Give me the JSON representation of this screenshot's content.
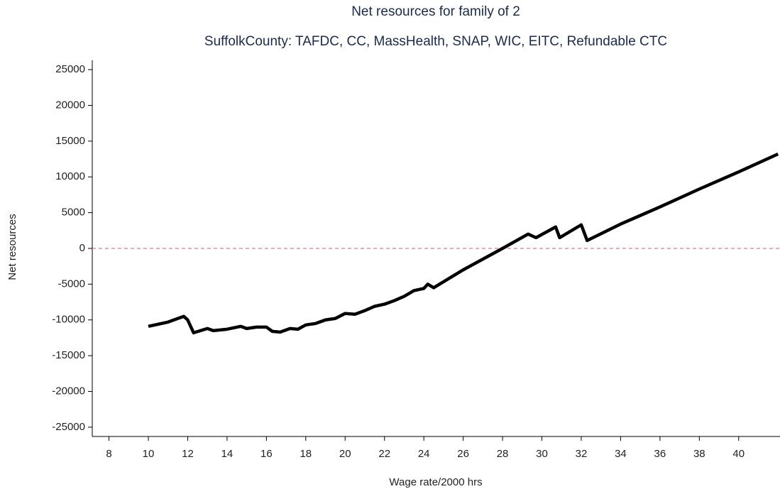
{
  "chart_data": {
    "type": "line",
    "title": "Net resources for family of 2",
    "subtitle": "SuffolkCounty: TAFDC, CC, MassHealth, SNAP, WIC, EITC, Refundable CTC",
    "x_label": "Wage rate/2000 hrs",
    "y_label": "Net resources",
    "x": [
      10,
      11,
      11.8,
      12,
      12.3,
      13,
      13.3,
      14,
      14.7,
      15,
      15.5,
      16,
      16.3,
      16.7,
      17.2,
      17.6,
      18,
      18.5,
      19,
      19.5,
      20,
      20.5,
      21,
      21.5,
      22,
      22.5,
      23,
      23.5,
      24,
      24.2,
      24.5,
      26,
      28,
      29.3,
      29.7,
      30.7,
      30.9,
      32,
      32.3,
      34,
      36,
      38,
      40,
      42
    ],
    "series": [
      {
        "color": "#000000",
        "values": [
          -10900,
          -10300,
          -9500,
          -10000,
          -11800,
          -11200,
          -11500,
          -11300,
          -10900,
          -11200,
          -11000,
          -11000,
          -11600,
          -11700,
          -11200,
          -11300,
          -10700,
          -10500,
          -10000,
          -9800,
          -9100,
          -9200,
          -8700,
          -8100,
          -7800,
          -7300,
          -6700,
          -5900,
          -5600,
          -5000,
          -5500,
          -3000,
          0,
          2000,
          1500,
          3000,
          1500,
          3300,
          1100,
          3400,
          5800,
          8300,
          10700,
          13200
        ]
      }
    ],
    "reference_line": {
      "value": 0,
      "color": "#e07a9a"
    },
    "xlim": [
      7.15,
      42.1
    ],
    "ylim": [
      -26300,
      26300
    ],
    "xticks": [
      8,
      10,
      12,
      14,
      16,
      18,
      20,
      22,
      24,
      26,
      28,
      30,
      32,
      34,
      36,
      38,
      40
    ],
    "yticks": [
      -25000,
      -20000,
      -15000,
      -10000,
      -5000,
      0,
      5000,
      10000,
      15000,
      20000,
      25000
    ]
  }
}
